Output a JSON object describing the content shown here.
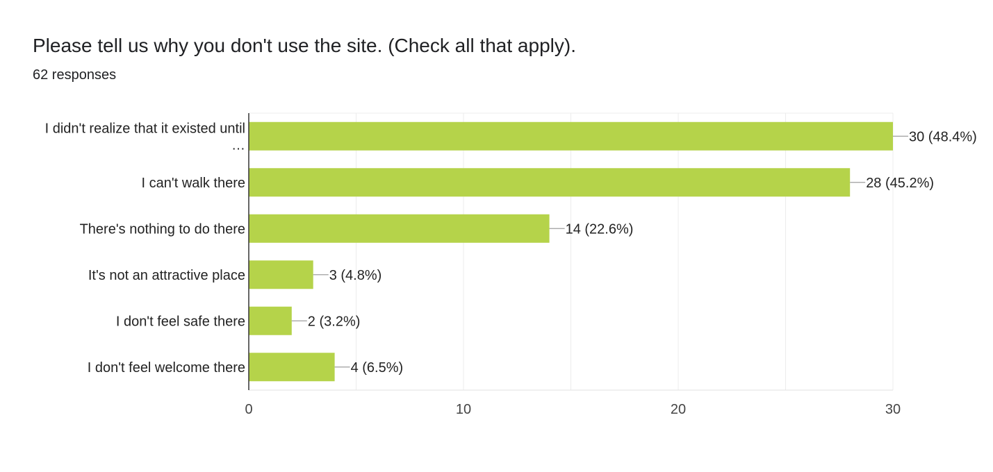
{
  "header": {
    "title": "Please tell us why you don't use the site. (Check all that apply).",
    "subtitle": "62 responses"
  },
  "chart_data": {
    "type": "bar",
    "orientation": "horizontal",
    "categories": [
      [
        "I didn't realize that it existed until",
        "…"
      ],
      [
        "I can't walk there"
      ],
      [
        "There's nothing to do there"
      ],
      [
        "It's not an attractive place"
      ],
      [
        "I don't feel safe there"
      ],
      [
        "I don't feel welcome there"
      ]
    ],
    "values": [
      30,
      28,
      14,
      3,
      2,
      4
    ],
    "data_labels": [
      "30 (48.4%)",
      "28 (45.2%)",
      "14 (22.6%)",
      "3 (4.8%)",
      "2 (3.2%)",
      "4 (6.5%)"
    ],
    "xlim": [
      0,
      30
    ],
    "xticks": [
      0,
      10,
      20,
      30
    ],
    "grid": true,
    "bar_color": "#b5d34a"
  }
}
